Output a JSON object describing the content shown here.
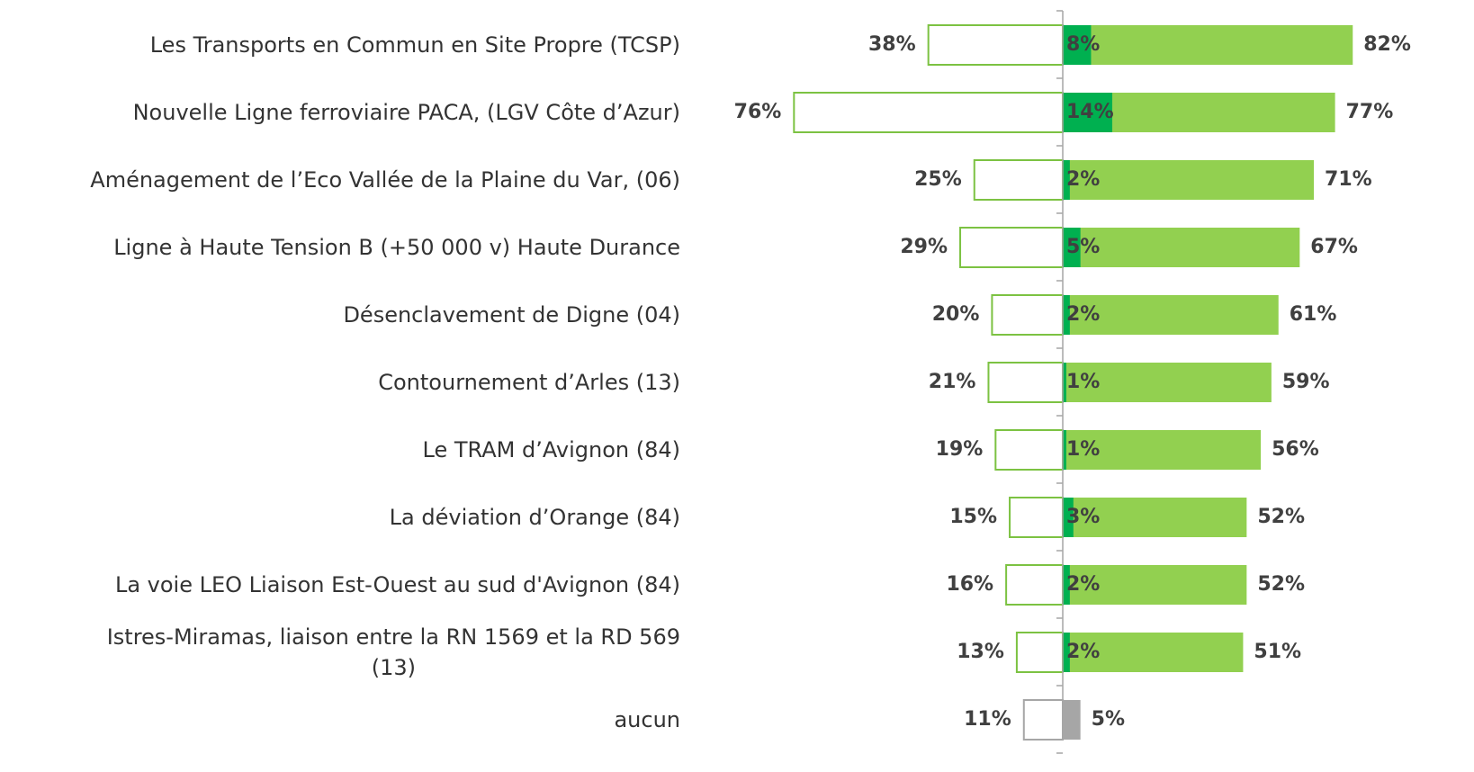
{
  "chart_data": {
    "type": "diverging-bar",
    "categories": [
      "Les Transports en Commun en Site Propre (TCSP)",
      "Nouvelle Ligne ferroviaire PACA, (LGV Côte d’Azur)",
      "Aménagement de l’Eco Vallée de la Plaine du Var, (06)",
      "Ligne à Haute Tension B (+50 000 v) Haute Durance",
      "Désenclavement de Digne (04)",
      "Contournement d’Arles (13)",
      "Le TRAM d’Avignon (84)",
      "La déviation d’Orange (84)",
      "La voie LEO Liaison Est-Ouest au sud d'Avignon (84)",
      "Istres-Miramas, liaison entre la RN 1569 et la RD 569\n(13)",
      "aucun"
    ],
    "series": [
      {
        "side": "left",
        "colors": [
          "#7cc242",
          "#7cc242",
          "#7cc242",
          "#7cc242",
          "#7cc242",
          "#7cc242",
          "#7cc242",
          "#7cc242",
          "#7cc242",
          "#7cc242",
          "#a6a6a6"
        ],
        "values": [
          38,
          76,
          25,
          29,
          20,
          21,
          19,
          15,
          16,
          13,
          11
        ],
        "value_labels": [
          "38%",
          "76%",
          "25%",
          "29%",
          "20%",
          "21%",
          "19%",
          "15%",
          "16%",
          "13%",
          "11%"
        ]
      },
      {
        "side": "right",
        "colors": [
          "#92d050",
          "#92d050",
          "#92d050",
          "#92d050",
          "#92d050",
          "#92d050",
          "#92d050",
          "#92d050",
          "#92d050",
          "#92d050",
          "#a6a6a6"
        ],
        "values": [
          82,
          77,
          71,
          67,
          61,
          59,
          56,
          52,
          52,
          51,
          5
        ],
        "value_labels": [
          "82%",
          "77%",
          "71%",
          "67%",
          "61%",
          "59%",
          "56%",
          "52%",
          "52%",
          "51%",
          "5%"
        ]
      },
      {
        "side": "right-inner",
        "color": "#00b050",
        "values": [
          8,
          14,
          2,
          5,
          2,
          1,
          1,
          3,
          2,
          2,
          null
        ],
        "value_labels": [
          "8%",
          "14%",
          "2%",
          "5%",
          "2%",
          "1%",
          "1%",
          "3%",
          "2%",
          "2%",
          null
        ]
      }
    ]
  }
}
